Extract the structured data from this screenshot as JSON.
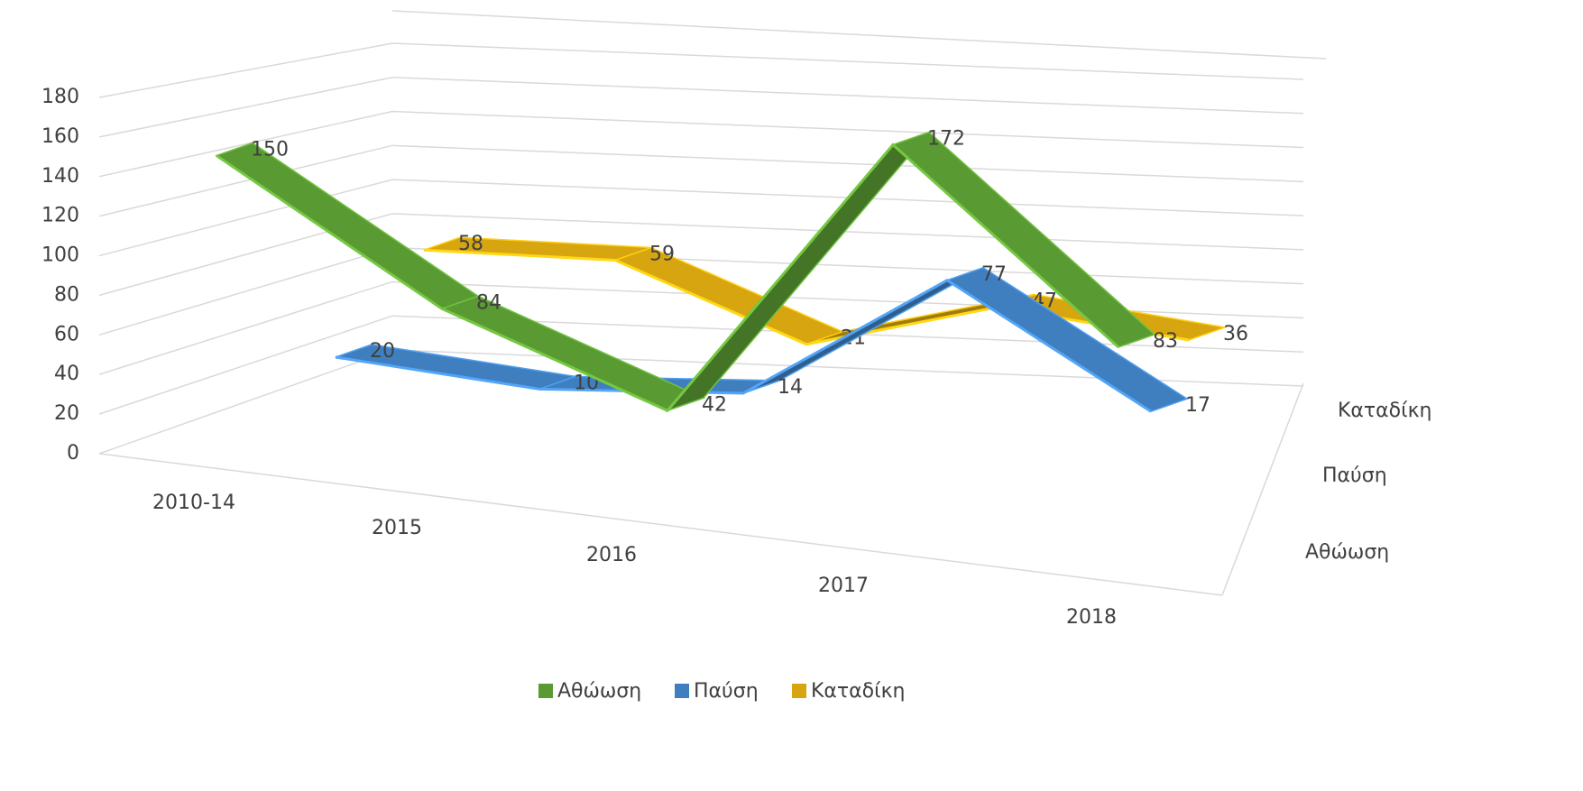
{
  "chart_data": {
    "type": "line3d",
    "categories": [
      "2010-14",
      "2015",
      "2016",
      "2017",
      "2018"
    ],
    "series": [
      {
        "name": "Αθώωση",
        "color": "#5a9a33",
        "values": [
          150,
          84,
          42,
          172,
          83
        ]
      },
      {
        "name": "Παύση",
        "color": "#3f7fbf",
        "values": [
          20,
          10,
          14,
          77,
          17
        ]
      },
      {
        "name": "Καταδίκη",
        "color": "#d6a50f",
        "values": [
          58,
          59,
          21,
          47,
          36
        ]
      }
    ],
    "ylim": [
      0,
      180
    ],
    "yticks": [
      0,
      20,
      40,
      60,
      80,
      100,
      120,
      140,
      160,
      180
    ],
    "grid": true,
    "legend": "bottom"
  }
}
